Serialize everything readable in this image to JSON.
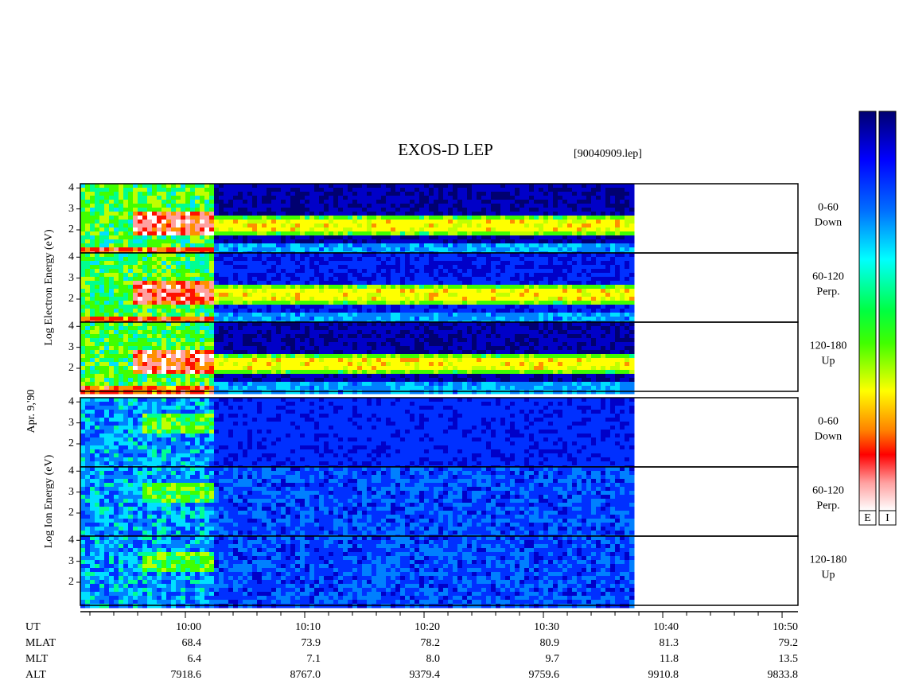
{
  "chart_data": {
    "type": "spectrogram",
    "title": "EXOS-D LEP",
    "subtitle": "[90040909.lep]",
    "date_label": "Apr. 9,'90",
    "x_label": "UT",
    "xlim": [
      -8.8,
      51.33
    ],
    "xticks": [
      {
        "value": 0,
        "label": "10:00"
      },
      {
        "value": 10,
        "label": "10:10"
      },
      {
        "value": 20,
        "label": "10:20"
      },
      {
        "value": 30,
        "label": "10:30"
      },
      {
        "value": 40,
        "label": "10:40"
      },
      {
        "value": 50,
        "label": "10:50"
      }
    ],
    "x_minor_ticks": [
      -8,
      -6,
      -4,
      -2,
      2,
      4,
      6,
      8,
      12,
      14,
      16,
      18,
      22,
      24,
      26,
      28,
      32,
      34,
      36,
      38,
      42,
      44,
      46,
      48
    ],
    "data_end": 37.2,
    "ylim": [
      0.9,
      4.2
    ],
    "yticks": [
      2,
      3,
      4
    ],
    "groups": [
      {
        "ylabel": "Log Electron Energy (eV)",
        "species": "electron",
        "panels": [
          {
            "label": [
              "0-60",
              "Down"
            ]
          },
          {
            "label": [
              "60-120",
              "Perp."
            ]
          },
          {
            "label": [
              "120-180",
              "Up"
            ]
          }
        ]
      },
      {
        "ylabel": "Log Ion Energy (eV)",
        "species": "ion",
        "panels": [
          {
            "label": [
              "0-60",
              "Down"
            ]
          },
          {
            "label": [
              "60-120",
              "Perp."
            ]
          },
          {
            "label": [
              "120-180",
              "Up"
            ]
          }
        ]
      }
    ],
    "ephemeris": [
      {
        "label": "MLAT",
        "values": [
          "68.4",
          "73.9",
          "78.2",
          "80.9",
          "81.3",
          "79.2"
        ]
      },
      {
        "label": "MLT",
        "values": [
          "6.4",
          "7.1",
          "8.0",
          "9.7",
          "11.8",
          "13.5"
        ]
      },
      {
        "label": "ALT",
        "values": [
          "7918.6",
          "8767.0",
          "9379.4",
          "9759.6",
          "9910.8",
          "9833.8"
        ]
      }
    ],
    "colorbars": [
      "E",
      "I"
    ]
  }
}
